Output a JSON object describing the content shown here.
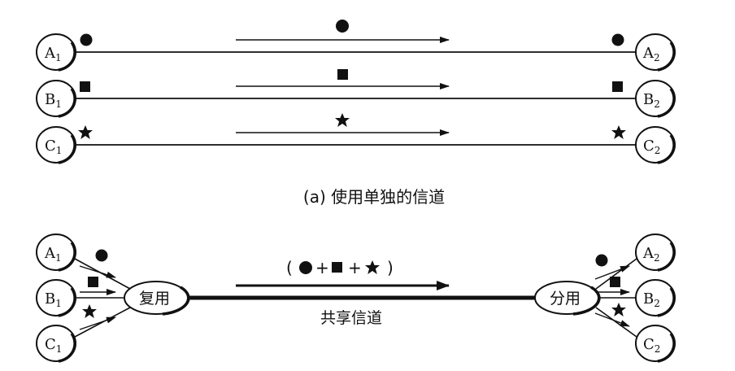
{
  "part_a": {
    "caption": "(a) 使用单独的信道",
    "channels": [
      {
        "left": {
          "letter": "A",
          "sub": "1"
        },
        "right": {
          "letter": "A",
          "sub": "2"
        },
        "symbol": "circle"
      },
      {
        "left": {
          "letter": "B",
          "sub": "1"
        },
        "right": {
          "letter": "B",
          "sub": "2"
        },
        "symbol": "square"
      },
      {
        "left": {
          "letter": "C",
          "sub": "1"
        },
        "right": {
          "letter": "C",
          "sub": "2"
        },
        "symbol": "star"
      }
    ]
  },
  "part_b": {
    "mux_label": "复用",
    "demux_label": "分用",
    "shared_label": "共享信道",
    "combined": {
      "open": "(",
      "plus": "+",
      "close": ")"
    },
    "left_nodes": [
      {
        "letter": "A",
        "sub": "1"
      },
      {
        "letter": "B",
        "sub": "1"
      },
      {
        "letter": "C",
        "sub": "1"
      }
    ],
    "right_nodes": [
      {
        "letter": "A",
        "sub": "2"
      },
      {
        "letter": "B",
        "sub": "2"
      },
      {
        "letter": "C",
        "sub": "2"
      }
    ]
  },
  "colors": {
    "ink": "#111111",
    "background": "#ffffff"
  }
}
